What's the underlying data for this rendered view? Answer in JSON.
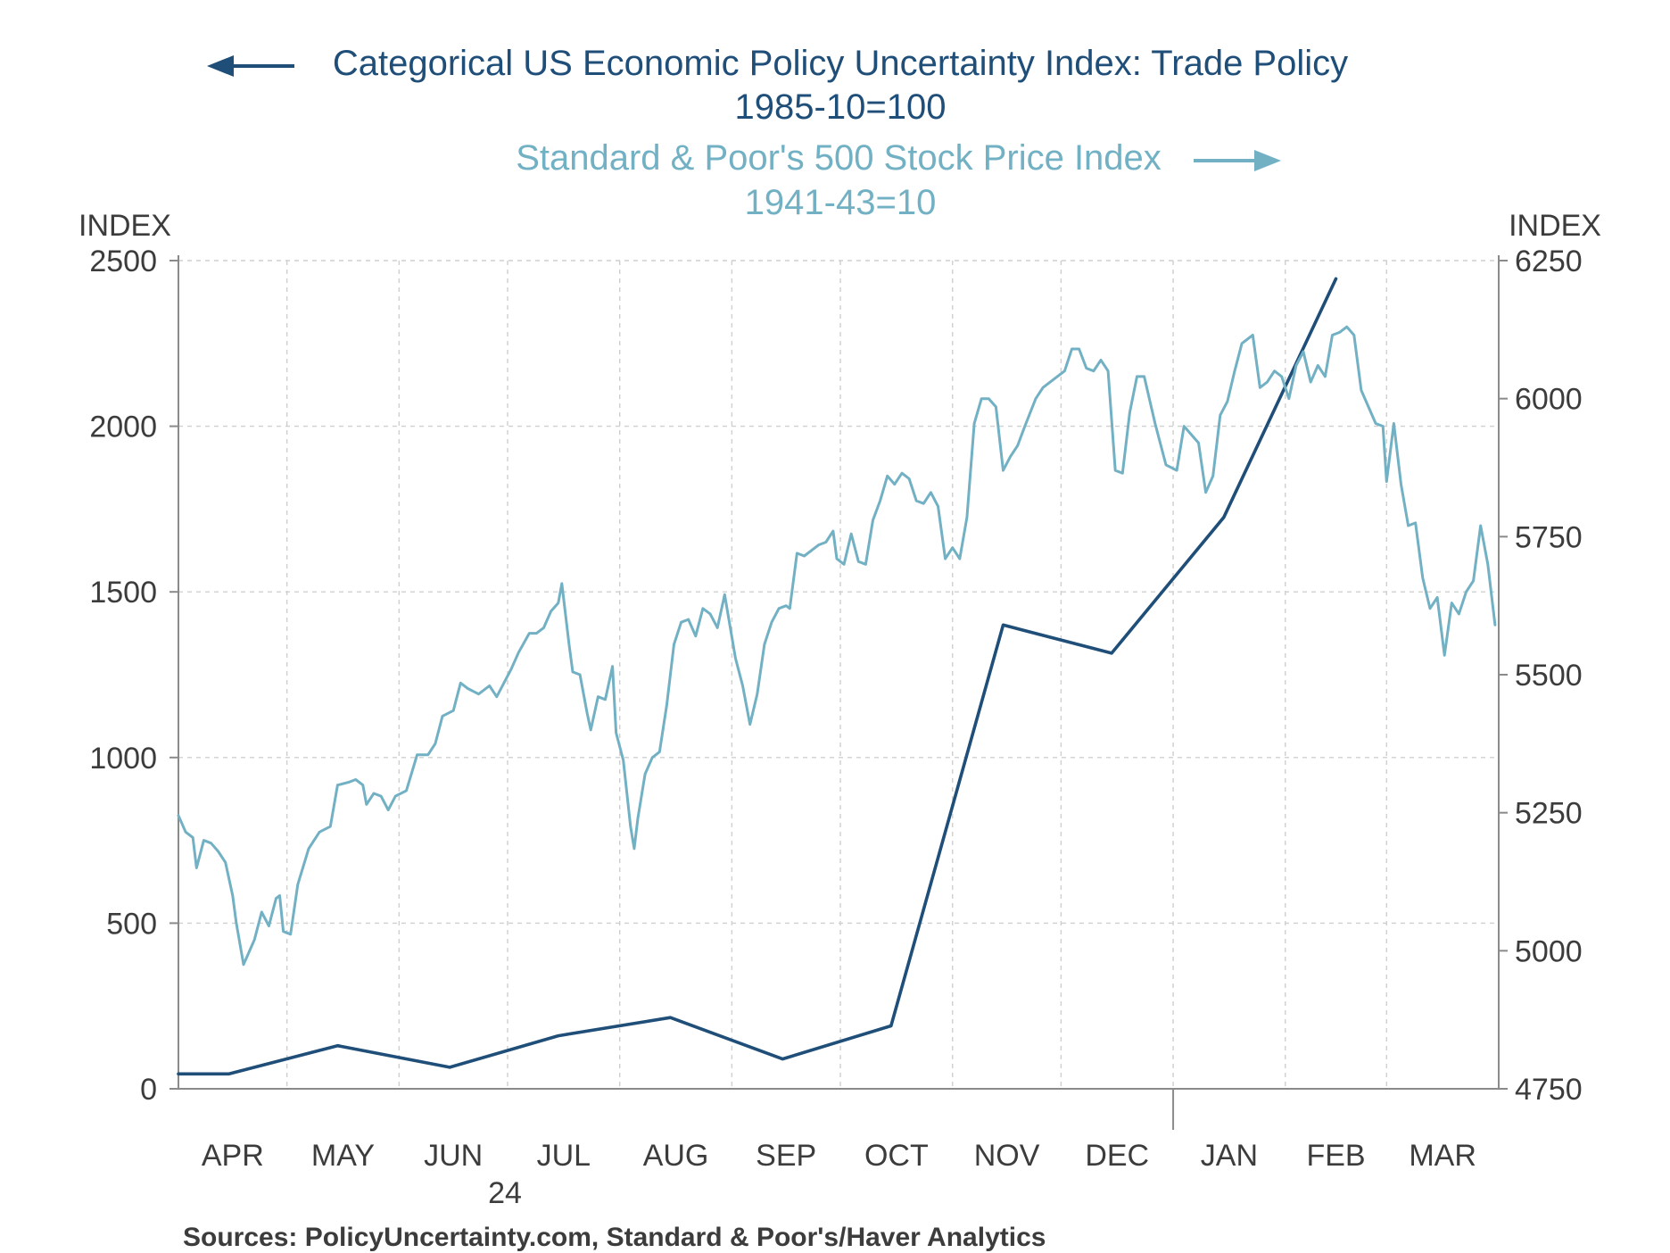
{
  "chart_data": {
    "type": "line",
    "title_lines": [
      "Categorical US Economic Policy Uncertainty Index: Trade Policy",
      "1985-10=100",
      "Standard & Poor's 500 Stock Price Index",
      "1941-43=10"
    ],
    "left_axis": {
      "label": "INDEX",
      "ticks": [
        "2500",
        "2000",
        "1500",
        "1000",
        "500",
        "0"
      ],
      "ylim": [
        0,
        2500
      ]
    },
    "right_axis": {
      "label": "INDEX",
      "ticks": [
        "6250",
        "6000",
        "5750",
        "5500",
        "5250",
        "5000",
        "4750"
      ],
      "ylim": [
        4750,
        6250
      ]
    },
    "x_month_labels": [
      "APR",
      "MAY",
      "JUN",
      "JUL",
      "AUG",
      "SEP",
      "OCT",
      "NOV",
      "DEC",
      "JAN",
      "FEB",
      "MAR"
    ],
    "x_year_label": "24",
    "xlim": [
      "2024-04-01",
      "2025-04-01"
    ],
    "colors": {
      "trade_policy": "#1f4e79",
      "sp500": "#72b0c4"
    },
    "series": [
      {
        "name": "Categorical US Economic Policy Uncertainty Index: Trade Policy",
        "axis": "left",
        "points": [
          [
            "2024-04-01",
            45
          ],
          [
            "2024-04-15",
            45
          ],
          [
            "2024-05-15",
            130
          ],
          [
            "2024-06-15",
            65
          ],
          [
            "2024-07-15",
            160
          ],
          [
            "2024-08-15",
            215
          ],
          [
            "2024-09-15",
            90
          ],
          [
            "2024-10-15",
            190
          ],
          [
            "2024-11-15",
            1400
          ],
          [
            "2024-12-15",
            1315
          ],
          [
            "2025-01-15",
            1725
          ],
          [
            "2025-02-15",
            2445
          ]
        ]
      },
      {
        "name": "Standard & Poor's 500 Stock Price Index",
        "axis": "right",
        "points": [
          [
            "2024-04-01",
            5245
          ],
          [
            "2024-04-03",
            5215
          ],
          [
            "2024-04-05",
            5205
          ],
          [
            "2024-04-06",
            5150
          ],
          [
            "2024-04-08",
            5200
          ],
          [
            "2024-04-10",
            5195
          ],
          [
            "2024-04-12",
            5180
          ],
          [
            "2024-04-14",
            5160
          ],
          [
            "2024-04-16",
            5100
          ],
          [
            "2024-04-17",
            5050
          ],
          [
            "2024-04-19",
            4975
          ],
          [
            "2024-04-22",
            5020
          ],
          [
            "2024-04-24",
            5070
          ],
          [
            "2024-04-26",
            5045
          ],
          [
            "2024-04-28",
            5095
          ],
          [
            "2024-04-29",
            5100
          ],
          [
            "2024-04-30",
            5035
          ],
          [
            "2024-05-02",
            5030
          ],
          [
            "2024-05-04",
            5120
          ],
          [
            "2024-05-07",
            5185
          ],
          [
            "2024-05-10",
            5215
          ],
          [
            "2024-05-13",
            5225
          ],
          [
            "2024-05-15",
            5300
          ],
          [
            "2024-05-18",
            5305
          ],
          [
            "2024-05-20",
            5310
          ],
          [
            "2024-05-22",
            5300
          ],
          [
            "2024-05-23",
            5265
          ],
          [
            "2024-05-25",
            5285
          ],
          [
            "2024-05-27",
            5280
          ],
          [
            "2024-05-29",
            5255
          ],
          [
            "2024-05-31",
            5280
          ],
          [
            "2024-06-03",
            5290
          ],
          [
            "2024-06-06",
            5355
          ],
          [
            "2024-06-09",
            5355
          ],
          [
            "2024-06-11",
            5375
          ],
          [
            "2024-06-13",
            5425
          ],
          [
            "2024-06-16",
            5435
          ],
          [
            "2024-06-18",
            5485
          ],
          [
            "2024-06-20",
            5475
          ],
          [
            "2024-06-23",
            5465
          ],
          [
            "2024-06-26",
            5480
          ],
          [
            "2024-06-28",
            5460
          ],
          [
            "2024-07-02",
            5510
          ],
          [
            "2024-07-04",
            5540
          ],
          [
            "2024-07-07",
            5575
          ],
          [
            "2024-07-09",
            5575
          ],
          [
            "2024-07-11",
            5585
          ],
          [
            "2024-07-13",
            5615
          ],
          [
            "2024-07-15",
            5630
          ],
          [
            "2024-07-16",
            5665
          ],
          [
            "2024-07-18",
            5555
          ],
          [
            "2024-07-19",
            5505
          ],
          [
            "2024-07-21",
            5500
          ],
          [
            "2024-07-23",
            5430
          ],
          [
            "2024-07-24",
            5400
          ],
          [
            "2024-07-26",
            5460
          ],
          [
            "2024-07-28",
            5455
          ],
          [
            "2024-07-30",
            5515
          ],
          [
            "2024-07-31",
            5395
          ],
          [
            "2024-08-02",
            5345
          ],
          [
            "2024-08-04",
            5225
          ],
          [
            "2024-08-05",
            5185
          ],
          [
            "2024-08-06",
            5240
          ],
          [
            "2024-08-08",
            5320
          ],
          [
            "2024-08-10",
            5350
          ],
          [
            "2024-08-12",
            5360
          ],
          [
            "2024-08-14",
            5445
          ],
          [
            "2024-08-16",
            5555
          ],
          [
            "2024-08-18",
            5595
          ],
          [
            "2024-08-20",
            5600
          ],
          [
            "2024-08-22",
            5570
          ],
          [
            "2024-08-24",
            5620
          ],
          [
            "2024-08-26",
            5610
          ],
          [
            "2024-08-28",
            5585
          ],
          [
            "2024-08-30",
            5645
          ],
          [
            "2024-09-02",
            5530
          ],
          [
            "2024-09-04",
            5480
          ],
          [
            "2024-09-06",
            5410
          ],
          [
            "2024-09-08",
            5465
          ],
          [
            "2024-09-10",
            5555
          ],
          [
            "2024-09-12",
            5595
          ],
          [
            "2024-09-14",
            5620
          ],
          [
            "2024-09-16",
            5625
          ],
          [
            "2024-09-17",
            5620
          ],
          [
            "2024-09-19",
            5720
          ],
          [
            "2024-09-21",
            5715
          ],
          [
            "2024-09-23",
            5725
          ],
          [
            "2024-09-25",
            5735
          ],
          [
            "2024-09-27",
            5740
          ],
          [
            "2024-09-29",
            5760
          ],
          [
            "2024-09-30",
            5710
          ],
          [
            "2024-10-02",
            5700
          ],
          [
            "2024-10-04",
            5755
          ],
          [
            "2024-10-06",
            5705
          ],
          [
            "2024-10-08",
            5700
          ],
          [
            "2024-10-10",
            5780
          ],
          [
            "2024-10-12",
            5815
          ],
          [
            "2024-10-14",
            5860
          ],
          [
            "2024-10-16",
            5845
          ],
          [
            "2024-10-18",
            5865
          ],
          [
            "2024-10-20",
            5855
          ],
          [
            "2024-10-22",
            5815
          ],
          [
            "2024-10-24",
            5810
          ],
          [
            "2024-10-26",
            5830
          ],
          [
            "2024-10-28",
            5805
          ],
          [
            "2024-10-30",
            5710
          ],
          [
            "2024-11-01",
            5730
          ],
          [
            "2024-11-03",
            5710
          ],
          [
            "2024-11-05",
            5785
          ],
          [
            "2024-11-07",
            5955
          ],
          [
            "2024-11-09",
            6000
          ],
          [
            "2024-11-11",
            6000
          ],
          [
            "2024-11-13",
            5985
          ],
          [
            "2024-11-15",
            5870
          ],
          [
            "2024-11-17",
            5895
          ],
          [
            "2024-11-19",
            5915
          ],
          [
            "2024-11-21",
            5950
          ],
          [
            "2024-11-24",
            6000
          ],
          [
            "2024-11-26",
            6020
          ],
          [
            "2024-11-28",
            6030
          ],
          [
            "2024-12-02",
            6050
          ],
          [
            "2024-12-04",
            6090
          ],
          [
            "2024-12-06",
            6090
          ],
          [
            "2024-12-08",
            6055
          ],
          [
            "2024-12-10",
            6050
          ],
          [
            "2024-12-12",
            6070
          ],
          [
            "2024-12-14",
            6050
          ],
          [
            "2024-12-16",
            5870
          ],
          [
            "2024-12-18",
            5865
          ],
          [
            "2024-12-20",
            5975
          ],
          [
            "2024-12-22",
            6040
          ],
          [
            "2024-12-24",
            6040
          ],
          [
            "2024-12-27",
            5955
          ],
          [
            "2024-12-30",
            5880
          ],
          [
            "2025-01-02",
            5870
          ],
          [
            "2025-01-04",
            5950
          ],
          [
            "2025-01-06",
            5935
          ],
          [
            "2025-01-08",
            5920
          ],
          [
            "2025-01-10",
            5830
          ],
          [
            "2025-01-12",
            5860
          ],
          [
            "2025-01-14",
            5970
          ],
          [
            "2025-01-16",
            5995
          ],
          [
            "2025-01-18",
            6050
          ],
          [
            "2025-01-20",
            6100
          ],
          [
            "2025-01-23",
            6115
          ],
          [
            "2025-01-25",
            6020
          ],
          [
            "2025-01-27",
            6030
          ],
          [
            "2025-01-29",
            6050
          ],
          [
            "2025-01-31",
            6040
          ],
          [
            "2025-02-02",
            6000
          ],
          [
            "2025-02-04",
            6060
          ],
          [
            "2025-02-06",
            6085
          ],
          [
            "2025-02-08",
            6030
          ],
          [
            "2025-02-10",
            6060
          ],
          [
            "2025-02-12",
            6040
          ],
          [
            "2025-02-14",
            6115
          ],
          [
            "2025-02-16",
            6120
          ],
          [
            "2025-02-18",
            6130
          ],
          [
            "2025-02-20",
            6115
          ],
          [
            "2025-02-22",
            6015
          ],
          [
            "2025-02-24",
            5985
          ],
          [
            "2025-02-26",
            5955
          ],
          [
            "2025-02-28",
            5950
          ],
          [
            "2025-03-01",
            5850
          ],
          [
            "2025-03-03",
            5955
          ],
          [
            "2025-03-05",
            5845
          ],
          [
            "2025-03-07",
            5770
          ],
          [
            "2025-03-09",
            5775
          ],
          [
            "2025-03-11",
            5675
          ],
          [
            "2025-03-13",
            5620
          ],
          [
            "2025-03-15",
            5640
          ],
          [
            "2025-03-17",
            5535
          ],
          [
            "2025-03-19",
            5630
          ],
          [
            "2025-03-21",
            5610
          ],
          [
            "2025-03-23",
            5650
          ],
          [
            "2025-03-25",
            5670
          ],
          [
            "2025-03-27",
            5770
          ],
          [
            "2025-03-29",
            5700
          ],
          [
            "2025-03-31",
            5590
          ]
        ]
      }
    ],
    "gridlines": true,
    "legend": "top-center"
  },
  "footer": {
    "sources": "Sources:  PolicyUncertainty.com, Standard & Poor's/Haver Analytics"
  }
}
